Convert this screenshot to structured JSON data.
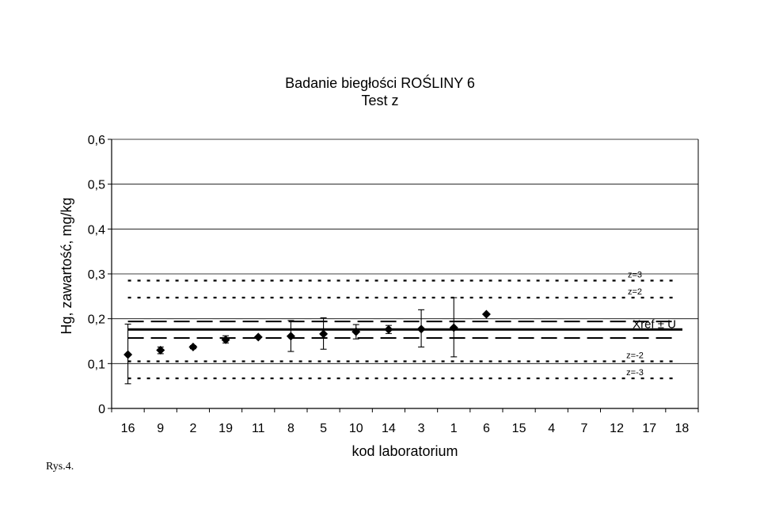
{
  "figure_label": "Rys.4.",
  "chart_data": {
    "type": "scatter",
    "title": "Badanie biegłości ROŚLINY 6",
    "subtitle": "Test z",
    "xlabel": "kod laboratorium",
    "ylabel": "Hg, zawartość, mg/kg",
    "ylim": [
      0,
      0.6
    ],
    "yticks": [
      "0",
      "0,1",
      "0,2",
      "0,3",
      "0,4",
      "0,5",
      "0,6"
    ],
    "ytick_values": [
      0,
      0.1,
      0.2,
      0.3,
      0.4,
      0.5,
      0.6
    ],
    "grid": "horizontal",
    "categories": [
      "16",
      "9",
      "2",
      "19",
      "11",
      "8",
      "5",
      "10",
      "14",
      "3",
      "1",
      "6",
      "15",
      "4",
      "7",
      "12",
      "17",
      "18"
    ],
    "values": [
      0.12,
      0.13,
      0.137,
      0.153,
      0.159,
      0.161,
      0.166,
      0.171,
      0.176,
      0.177,
      0.18,
      0.21,
      null,
      null,
      null,
      null,
      null,
      null
    ],
    "error_low": [
      0.055,
      0.122,
      0.133,
      0.146,
      null,
      0.127,
      0.132,
      0.155,
      0.167,
      0.137,
      0.115,
      null,
      null,
      null,
      null,
      null,
      null,
      null
    ],
    "error_high": [
      0.188,
      0.137,
      0.14,
      0.162,
      null,
      0.196,
      0.202,
      0.187,
      0.185,
      0.22,
      0.247,
      null,
      null,
      null,
      null,
      null,
      null,
      null
    ],
    "reference_lines": [
      {
        "label": "z=3",
        "value": 0.285,
        "style": "dotted"
      },
      {
        "label": "z=2",
        "value": 0.247,
        "style": "dotted"
      },
      {
        "label": "Xref ± U",
        "value": 0.176,
        "style": "solid"
      },
      {
        "label": "",
        "value": 0.194,
        "style": "dashed"
      },
      {
        "label": "",
        "value": 0.157,
        "style": "dashed"
      },
      {
        "label": "z=-2",
        "value": 0.105,
        "style": "dotted"
      },
      {
        "label": "z=-3",
        "value": 0.067,
        "style": "dotted"
      }
    ]
  }
}
